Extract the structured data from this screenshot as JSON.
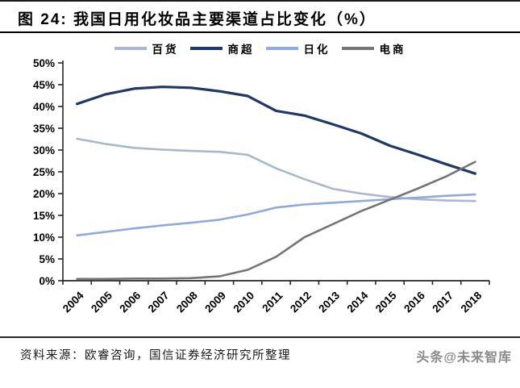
{
  "header": {
    "title": "图 24: 我国日用化妆品主要渠道占比变化（%）"
  },
  "chart_data": {
    "type": "line",
    "title": "我国日用化妆品主要渠道占比变化（%）",
    "xlabel": "",
    "ylabel": "",
    "categories": [
      "2004",
      "2005",
      "2006",
      "2007",
      "2008",
      "2009",
      "2010",
      "2011",
      "2012",
      "2013",
      "2014",
      "2015",
      "2016",
      "2017",
      "2018"
    ],
    "series": [
      {
        "name": "百货",
        "color": "#a9b8cc",
        "values": [
          32.6,
          31.4,
          30.5,
          30.1,
          29.8,
          29.6,
          28.9,
          25.8,
          23.3,
          21.1,
          20.0,
          19.2,
          18.7,
          18.4,
          18.3
        ]
      },
      {
        "name": "商超",
        "color": "#1f3864",
        "values": [
          40.6,
          42.8,
          44.1,
          44.5,
          44.3,
          43.5,
          42.4,
          39.0,
          37.9,
          35.9,
          33.8,
          31.0,
          28.9,
          26.7,
          24.6
        ]
      },
      {
        "name": "日化",
        "color": "#8faadc",
        "values": [
          10.4,
          11.2,
          12.0,
          12.7,
          13.3,
          14.0,
          15.2,
          16.8,
          17.5,
          17.9,
          18.3,
          18.7,
          19.1,
          19.5,
          19.8
        ]
      },
      {
        "name": "电商",
        "color": "#757575",
        "values": [
          0.4,
          0.4,
          0.5,
          0.5,
          0.6,
          1.0,
          2.5,
          5.5,
          10.0,
          13.0,
          16.0,
          18.6,
          21.2,
          24.0,
          27.3
        ]
      }
    ],
    "ylim": [
      0,
      50
    ],
    "yticks": [
      "0%",
      "5%",
      "10%",
      "15%",
      "20%",
      "25%",
      "30%",
      "35%",
      "40%",
      "45%",
      "50%"
    ],
    "grid": false,
    "legend_position": "top"
  },
  "footer": {
    "source": "资料来源：欧睿咨询，国信证券经济研究所整理",
    "watermark": "头条@未来智库"
  }
}
